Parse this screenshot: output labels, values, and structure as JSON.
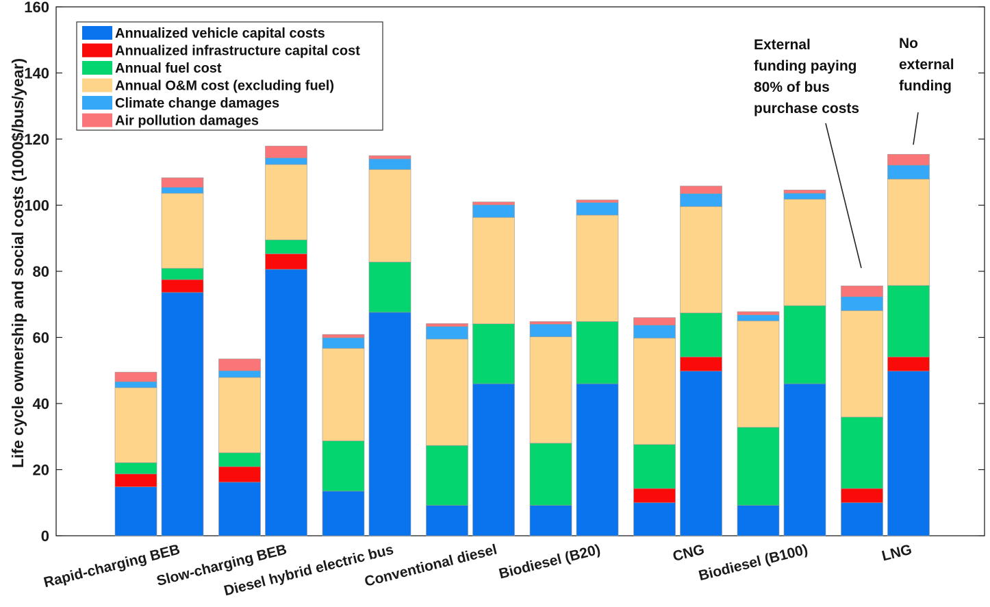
{
  "chart_data": {
    "type": "stacked_bar",
    "ylabel": "Life cycle ownership and social costs (1000$/bus/year)",
    "ylim": [
      0,
      160
    ],
    "yticks": [
      0,
      20,
      40,
      60,
      80,
      100,
      120,
      140,
      160
    ],
    "categories": [
      "Rapid-charging BEB",
      "Slow-charging BEB",
      "Diesel hybrid electric bus",
      "Conventional diesel",
      "Biodiesel (B20)",
      "CNG",
      "Biodiesel (B100)",
      "LNG"
    ],
    "bar_variants": [
      "External funding paying 80% of bus purchase costs",
      "No external funding"
    ],
    "series": [
      {
        "name": "Annualized vehicle capital costs",
        "color": "#0a74ee",
        "values": [
          [
            14.8,
            73.6
          ],
          [
            16.2,
            80.6
          ],
          [
            13.5,
            67.6
          ],
          [
            9.2,
            46.0
          ],
          [
            9.2,
            46.0
          ],
          [
            10.0,
            49.8
          ],
          [
            9.2,
            46.0
          ],
          [
            10.0,
            49.8
          ]
        ]
      },
      {
        "name": "Annualized infrastructure capital cost",
        "color": "#fb0a0a",
        "values": [
          [
            3.9,
            3.9
          ],
          [
            4.7,
            4.7
          ],
          [
            0,
            0
          ],
          [
            0,
            0
          ],
          [
            0,
            0
          ],
          [
            4.3,
            4.3
          ],
          [
            0,
            0
          ],
          [
            4.3,
            4.3
          ]
        ]
      },
      {
        "name": "Annual fuel cost",
        "color": "#05d56e",
        "values": [
          [
            3.4,
            3.4
          ],
          [
            4.2,
            4.2
          ],
          [
            15.2,
            15.2
          ],
          [
            18.1,
            18.1
          ],
          [
            18.8,
            18.8
          ],
          [
            13.3,
            13.3
          ],
          [
            23.6,
            23.6
          ],
          [
            21.6,
            21.6
          ]
        ]
      },
      {
        "name": "Annual O&M cost (excluding fuel)",
        "color": "#fdd48a",
        "values": [
          [
            22.7,
            22.7
          ],
          [
            22.8,
            22.8
          ],
          [
            28.0,
            28.0
          ],
          [
            32.2,
            32.2
          ],
          [
            32.2,
            32.2
          ],
          [
            32.2,
            32.2
          ],
          [
            32.2,
            32.2
          ],
          [
            32.2,
            32.2
          ]
        ]
      },
      {
        "name": "Climate change damages",
        "color": "#35a8f7",
        "values": [
          [
            1.8,
            1.8
          ],
          [
            2.0,
            2.0
          ],
          [
            3.2,
            3.2
          ],
          [
            3.8,
            3.8
          ],
          [
            3.8,
            3.8
          ],
          [
            3.9,
            3.9
          ],
          [
            1.8,
            1.8
          ],
          [
            4.2,
            4.2
          ]
        ]
      },
      {
        "name": "Air pollution damages",
        "color": "#f97577",
        "values": [
          [
            2.9,
            2.9
          ],
          [
            3.6,
            3.6
          ],
          [
            1.0,
            1.0
          ],
          [
            0.9,
            0.9
          ],
          [
            0.8,
            0.8
          ],
          [
            2.3,
            2.3
          ],
          [
            1.0,
            1.0
          ],
          [
            3.3,
            3.3
          ]
        ]
      }
    ],
    "annotations": [
      {
        "lines": [
          "External",
          "funding paying",
          "80% of bus",
          "purchase costs"
        ],
        "points_to": "LNG, left bar"
      },
      {
        "lines": [
          "No",
          "external",
          "funding"
        ],
        "points_to": "LNG, right bar"
      }
    ],
    "legend_position": "top-left"
  }
}
